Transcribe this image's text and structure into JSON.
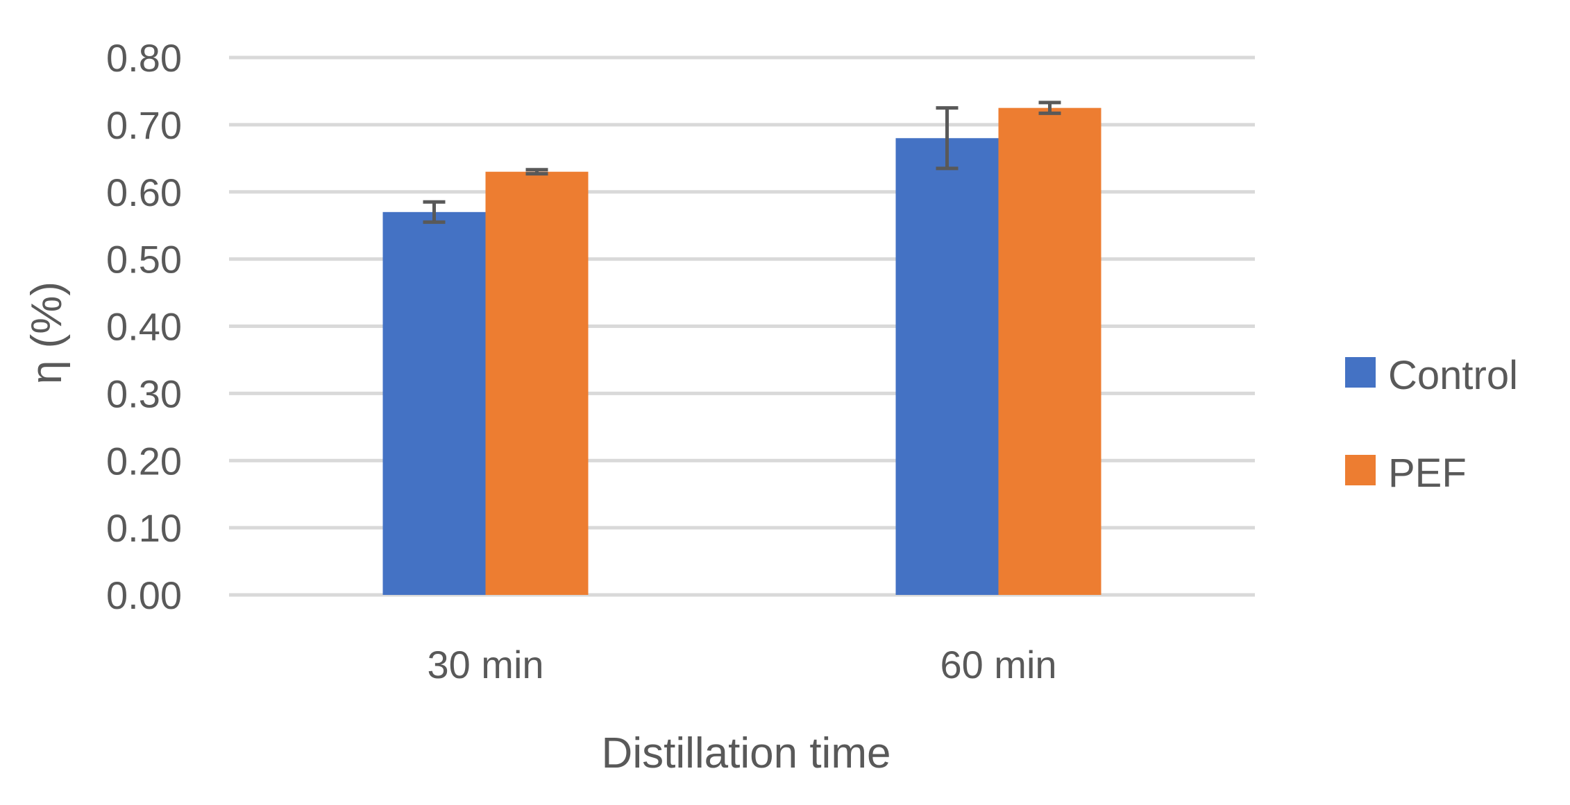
{
  "chart_data": {
    "type": "bar",
    "categories": [
      "30 min",
      "60 min"
    ],
    "series": [
      {
        "name": "Control",
        "color": "#4472C4",
        "values": [
          0.57,
          0.68
        ],
        "errors": [
          0.015,
          0.045
        ]
      },
      {
        "name": "PEF",
        "color": "#ED7D31",
        "values": [
          0.63,
          0.725
        ],
        "errors": [
          0.003,
          0.008
        ]
      }
    ],
    "title": "",
    "xlabel": "Distillation time",
    "ylabel": "η (%)",
    "ylim": [
      0,
      0.8
    ],
    "yticks": [
      "0.00",
      "0.10",
      "0.20",
      "0.30",
      "0.40",
      "0.50",
      "0.60",
      "0.70",
      "0.80"
    ],
    "grid": true,
    "legend_position": "right"
  }
}
